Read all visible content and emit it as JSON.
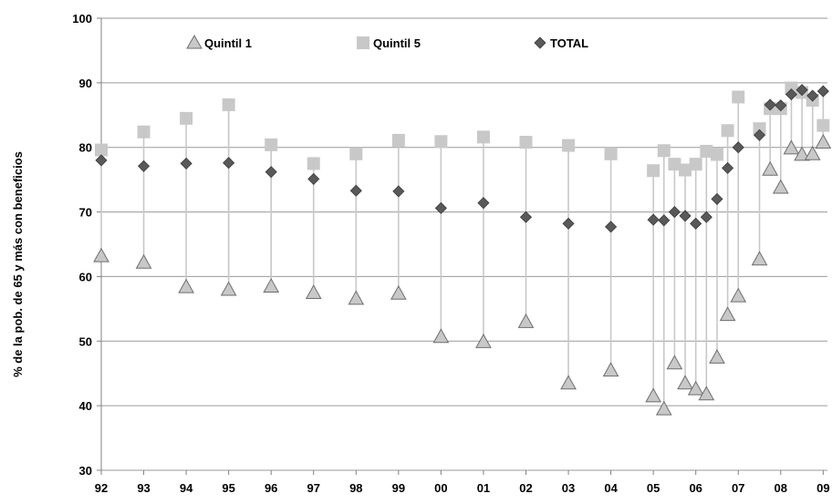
{
  "chart_data": {
    "type": "scatter",
    "ylabel": "% de la pob. de 65 y más con beneficios",
    "xlabel": "",
    "ylim": [
      30,
      100
    ],
    "yticks": [
      30,
      40,
      50,
      60,
      70,
      80,
      90,
      100
    ],
    "x_tick_labels": [
      "92",
      "93",
      "94",
      "95",
      "96",
      "97",
      "98",
      "99",
      "00",
      "01",
      "02",
      "03",
      "04",
      "05",
      "06",
      "07",
      "08",
      "09"
    ],
    "grid": "horizontal",
    "legend_position": "top",
    "x": [
      1992.0,
      1993.0,
      1994.0,
      1995.0,
      1996.0,
      1997.0,
      1998.0,
      1999.0,
      2000.0,
      2001.0,
      2002.0,
      2003.0,
      2004.0,
      2005.0,
      2005.25,
      2005.5,
      2005.75,
      2006.0,
      2006.25,
      2006.5,
      2006.75,
      2007.0,
      2007.5,
      2007.75,
      2008.0,
      2008.25,
      2008.5,
      2008.75,
      2009.0
    ],
    "series": [
      {
        "name": "Quintil 1",
        "marker": "triangle",
        "color": "#c8c8c8",
        "values": [
          63.2,
          62.2,
          58.4,
          58.0,
          58.5,
          57.5,
          56.6,
          57.4,
          50.7,
          49.9,
          53.0,
          43.5,
          45.5,
          41.5,
          39.5,
          46.6,
          43.5,
          42.6,
          41.8,
          47.5,
          54.1,
          57.0,
          62.7,
          76.6,
          73.8,
          79.9,
          78.9,
          79.0,
          80.8
        ]
      },
      {
        "name": "Quintil 5",
        "marker": "square",
        "color": "#c8c8c8",
        "values": [
          79.6,
          82.4,
          84.5,
          86.6,
          80.4,
          77.5,
          79.0,
          81.1,
          80.9,
          81.6,
          80.8,
          80.3,
          79.0,
          76.4,
          79.5,
          77.4,
          76.5,
          77.4,
          79.4,
          78.9,
          82.6,
          87.8,
          82.9,
          86.0,
          86.0,
          89.2,
          88.5,
          87.3,
          83.4
        ]
      },
      {
        "name": "TOTAL",
        "marker": "diamond",
        "color": "#595959",
        "values": [
          78.0,
          77.1,
          77.5,
          77.6,
          76.2,
          75.1,
          73.3,
          73.2,
          70.6,
          71.4,
          69.2,
          68.2,
          67.7,
          68.8,
          68.7,
          70.0,
          69.4,
          68.2,
          69.2,
          72.0,
          76.8,
          80.0,
          81.9,
          86.6,
          86.5,
          88.2,
          88.9,
          88.0,
          88.7
        ]
      }
    ]
  }
}
